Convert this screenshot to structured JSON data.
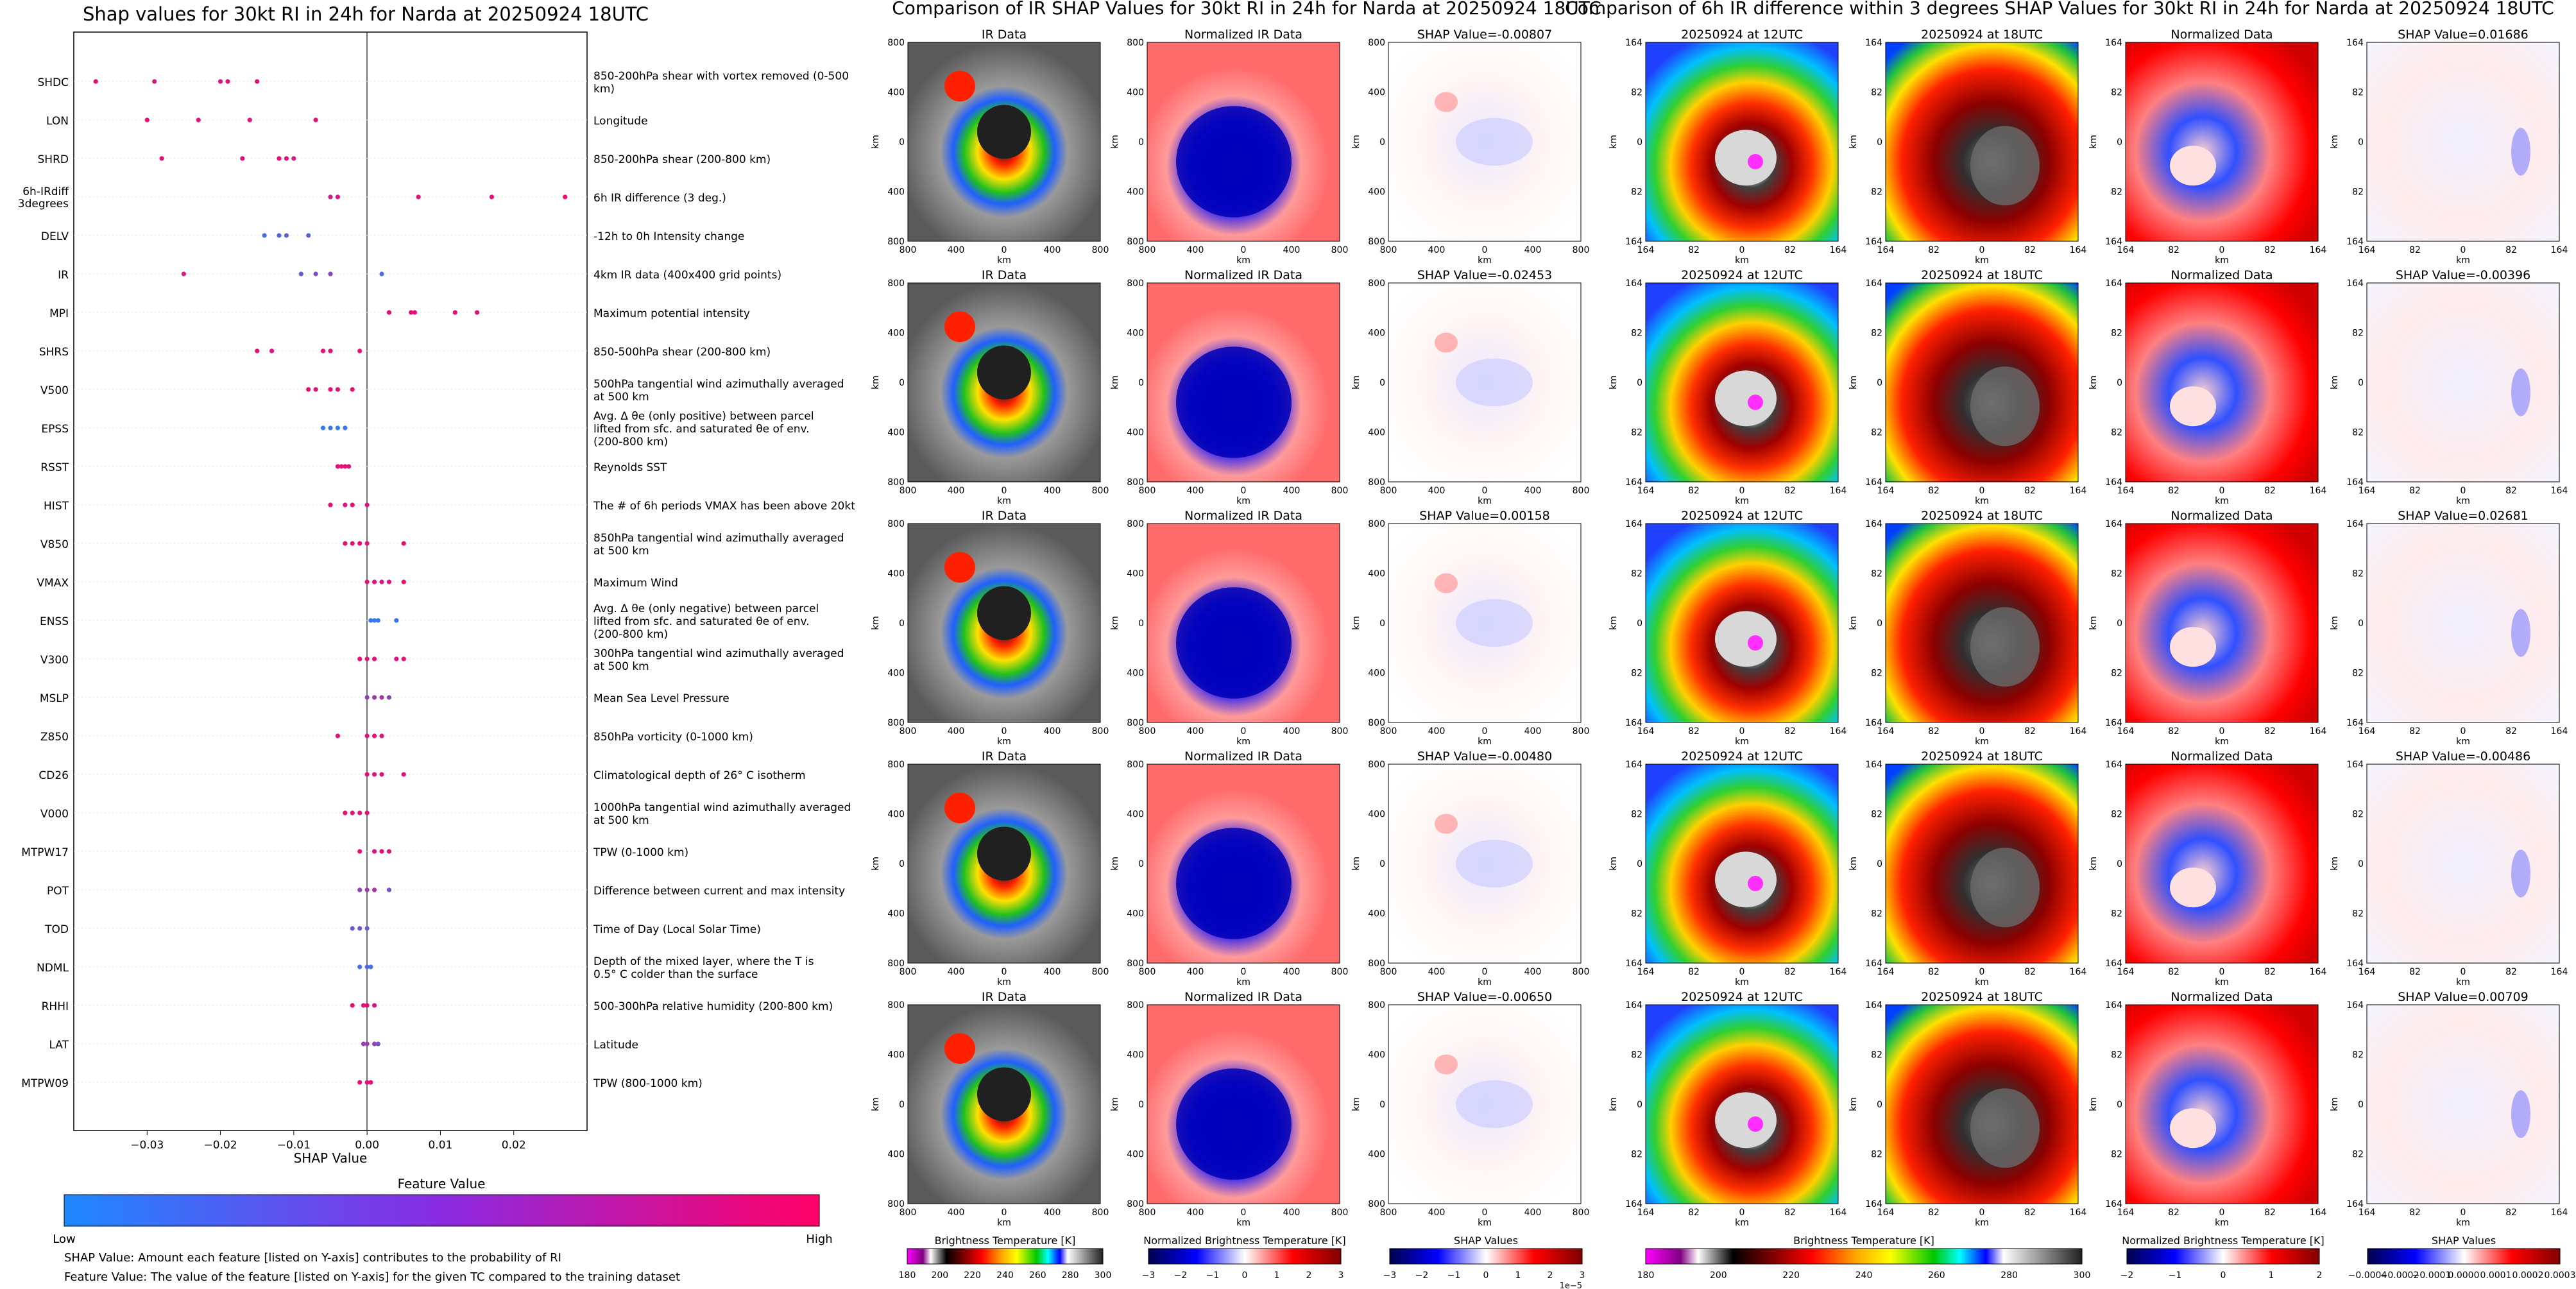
{
  "left": {
    "title": "Shap values for 30kt RI in 24h for Narda at 20250924 18UTC",
    "xlabel": "SHAP Value",
    "colorbar_title": "Feature Value",
    "colorbar_low": "Low",
    "colorbar_high": "High",
    "note1": "SHAP Value: Amount each feature [listed on Y-axis] contributes to the probability of RI",
    "note2": "Feature Value: The value of the feature [listed on Y-axis] for the given TC compared to the training dataset"
  },
  "chart_data": [
    {
      "type": "scatter",
      "title": "Shap values for 30kt RI in 24h for Narda at 20250924 18UTC",
      "xlabel": "SHAP Value",
      "xlim": [
        -0.04,
        0.03
      ],
      "xticks": [
        -0.03,
        -0.02,
        -0.01,
        0.0,
        0.01,
        0.02
      ],
      "xtick_labels": [
        "−0.03",
        "−0.02",
        "−0.01",
        "0.00",
        "0.01",
        "0.02"
      ],
      "legend": "colorbar-bottom",
      "color_low": "#1e88ff",
      "color_high": "#ff0066",
      "features": [
        {
          "name": "SHDC",
          "desc": "850-200hPa shear with vortex removed (0-500 km)",
          "points": [
            [
              -0.037,
              0.9
            ],
            [
              -0.029,
              0.8
            ],
            [
              -0.02,
              0.85
            ],
            [
              -0.019,
              0.9
            ],
            [
              -0.015,
              0.85
            ]
          ]
        },
        {
          "name": "LON",
          "desc": "Longitude",
          "points": [
            [
              -0.03,
              0.9
            ],
            [
              -0.023,
              0.85
            ],
            [
              -0.016,
              0.85
            ],
            [
              -0.007,
              0.9
            ]
          ]
        },
        {
          "name": "SHRD",
          "desc": "850-200hPa shear (200-800 km)",
          "points": [
            [
              -0.028,
              0.9
            ],
            [
              -0.017,
              0.85
            ],
            [
              -0.012,
              0.9
            ],
            [
              -0.011,
              0.85
            ],
            [
              -0.01,
              0.8
            ]
          ]
        },
        {
          "name": "6h-IRdiff 3degrees",
          "desc": "6h IR difference (3 deg.)",
          "points": [
            [
              -0.005,
              0.8
            ],
            [
              -0.004,
              0.85
            ],
            [
              0.007,
              0.9
            ],
            [
              0.017,
              0.9
            ],
            [
              0.027,
              0.95
            ]
          ]
        },
        {
          "name": "DELV",
          "desc": "-12h to 0h Intensity change",
          "points": [
            [
              -0.014,
              0.2
            ],
            [
              -0.012,
              0.25
            ],
            [
              -0.011,
              0.3
            ],
            [
              -0.008,
              0.25
            ]
          ]
        },
        {
          "name": "IR",
          "desc": "4km IR data (400x400 grid points)",
          "points": [
            [
              -0.025,
              0.8
            ],
            [
              -0.009,
              0.3
            ],
            [
              -0.007,
              0.4
            ],
            [
              -0.005,
              0.5
            ],
            [
              0.002,
              0.2
            ]
          ]
        },
        {
          "name": "MPI",
          "desc": "Maximum potential intensity",
          "points": [
            [
              0.003,
              0.9
            ],
            [
              0.006,
              0.9
            ],
            [
              0.0065,
              0.85
            ],
            [
              0.012,
              0.9
            ],
            [
              0.015,
              0.9
            ]
          ]
        },
        {
          "name": "SHRS",
          "desc": "850-500hPa shear (200-800 km)",
          "points": [
            [
              -0.015,
              0.9
            ],
            [
              -0.013,
              0.85
            ],
            [
              -0.006,
              0.9
            ],
            [
              -0.005,
              0.85
            ],
            [
              -0.001,
              0.9
            ]
          ]
        },
        {
          "name": "V500",
          "desc": "500hPa tangential wind azimuthally averaged at 500 km",
          "points": [
            [
              -0.008,
              0.9
            ],
            [
              -0.007,
              0.85
            ],
            [
              -0.005,
              0.9
            ],
            [
              -0.004,
              0.85
            ],
            [
              -0.002,
              0.9
            ]
          ]
        },
        {
          "name": "EPSS",
          "desc": "Avg. Δ θe (only positive) between parcel lifted from sfc. and saturated θe of env. (200-800 km)",
          "points": [
            [
              -0.006,
              0.1
            ],
            [
              -0.005,
              0.15
            ],
            [
              -0.004,
              0.1
            ],
            [
              -0.003,
              0.15
            ]
          ]
        },
        {
          "name": "RSST",
          "desc": "Reynolds SST",
          "points": [
            [
              -0.004,
              0.9
            ],
            [
              -0.0035,
              0.85
            ],
            [
              -0.003,
              0.9
            ],
            [
              -0.0025,
              0.85
            ]
          ]
        },
        {
          "name": "HIST",
          "desc": "The # of 6h periods VMAX has been above 20kt",
          "points": [
            [
              -0.005,
              0.9
            ],
            [
              -0.003,
              0.85
            ],
            [
              -0.002,
              0.9
            ],
            [
              0.0,
              0.85
            ]
          ]
        },
        {
          "name": "V850",
          "desc": "850hPa tangential wind azimuthally averaged at 500 km",
          "points": [
            [
              -0.003,
              0.9
            ],
            [
              -0.002,
              0.85
            ],
            [
              -0.001,
              0.9
            ],
            [
              0.0,
              0.85
            ],
            [
              0.005,
              0.9
            ]
          ]
        },
        {
          "name": "VMAX",
          "desc": "Maximum Wind",
          "points": [
            [
              0.0,
              0.9
            ],
            [
              0.001,
              0.85
            ],
            [
              0.002,
              0.85
            ],
            [
              0.003,
              0.85
            ],
            [
              0.005,
              0.9
            ]
          ]
        },
        {
          "name": "ENSS",
          "desc": "Avg. Δ θe (only negative) between parcel lifted from sfc. and saturated θe of env. (200-800 km)",
          "points": [
            [
              0.0005,
              0.1
            ],
            [
              0.001,
              0.15
            ],
            [
              0.0015,
              0.1
            ],
            [
              0.004,
              0.15
            ]
          ]
        },
        {
          "name": "V300",
          "desc": "300hPa tangential wind azimuthally averaged at 500 km",
          "points": [
            [
              -0.001,
              0.9
            ],
            [
              0.0,
              0.85
            ],
            [
              0.001,
              0.9
            ],
            [
              0.004,
              0.85
            ],
            [
              0.005,
              0.9
            ]
          ]
        },
        {
          "name": "MSLP",
          "desc": "Mean Sea Level Pressure",
          "points": [
            [
              0.0,
              0.5
            ],
            [
              0.001,
              0.55
            ],
            [
              0.002,
              0.6
            ],
            [
              0.003,
              0.5
            ]
          ]
        },
        {
          "name": "Z850",
          "desc": "850hPa vorticity (0-1000 km)",
          "points": [
            [
              -0.004,
              0.9
            ],
            [
              0.0,
              0.85
            ],
            [
              0.001,
              0.9
            ],
            [
              0.002,
              0.85
            ]
          ]
        },
        {
          "name": "CD26",
          "desc": "Climatological depth of 26° C isotherm",
          "points": [
            [
              0.0,
              0.9
            ],
            [
              0.001,
              0.85
            ],
            [
              0.002,
              0.9
            ],
            [
              0.005,
              0.85
            ]
          ]
        },
        {
          "name": "V000",
          "desc": "1000hPa tangential wind azimuthally averaged at 500 km",
          "points": [
            [
              -0.003,
              0.9
            ],
            [
              -0.002,
              0.85
            ],
            [
              -0.001,
              0.85
            ],
            [
              0.0,
              0.9
            ]
          ]
        },
        {
          "name": "MTPW17",
          "desc": "TPW (0-1000 km)",
          "points": [
            [
              -0.001,
              0.9
            ],
            [
              0.001,
              0.85
            ],
            [
              0.002,
              0.9
            ],
            [
              0.003,
              0.85
            ]
          ]
        },
        {
          "name": "POT",
          "desc": "Difference between current and max intensity",
          "points": [
            [
              -0.001,
              0.5
            ],
            [
              0.0,
              0.55
            ],
            [
              0.001,
              0.6
            ],
            [
              0.003,
              0.4
            ]
          ]
        },
        {
          "name": "TOD",
          "desc": "Time of Day (Local Solar Time)",
          "points": [
            [
              -0.002,
              0.3
            ],
            [
              -0.001,
              0.35
            ],
            [
              0.0,
              0.3
            ]
          ]
        },
        {
          "name": "NDML",
          "desc": "Depth of the mixed layer, where the T is 0.5° C colder than the surface",
          "points": [
            [
              -0.001,
              0.2
            ],
            [
              0.0,
              0.25
            ],
            [
              0.0005,
              0.2
            ]
          ]
        },
        {
          "name": "RHHI",
          "desc": "500-300hPa relative humidity (200-800 km)",
          "points": [
            [
              -0.002,
              0.9
            ],
            [
              -0.0005,
              0.85
            ],
            [
              0.0,
              0.9
            ],
            [
              0.001,
              0.85
            ]
          ]
        },
        {
          "name": "LAT",
          "desc": "Latitude",
          "points": [
            [
              -0.0005,
              0.5
            ],
            [
              0.0,
              0.55
            ],
            [
              0.001,
              0.5
            ],
            [
              0.0015,
              0.4
            ]
          ]
        },
        {
          "name": "MTPW09",
          "desc": "TPW (800-1000 km)",
          "points": [
            [
              -0.001,
              0.9
            ],
            [
              0.0,
              0.85
            ],
            [
              0.0005,
              0.9
            ]
          ]
        }
      ]
    },
    {
      "type": "heatmap",
      "title": "Comparison of IR SHAP Values for 30kt RI in 24h for Narda at 20250924 18UTC",
      "columns": [
        "IR Data",
        "Normalized IR Data",
        "SHAP Value"
      ],
      "axis_label": "km",
      "tick_labels": [
        "800",
        "400",
        "0",
        "400",
        "800"
      ],
      "shap_values": [
        "-0.00807",
        "-0.02453",
        "0.00158",
        "-0.00480",
        "-0.00650"
      ],
      "colorbars": [
        {
          "label": "Brightness Temperature [K]",
          "ticks": [
            "180",
            "200",
            "220",
            "240",
            "260",
            "280",
            "300"
          ]
        },
        {
          "label": "Normalized Brightness Temperature [K]",
          "ticks": [
            "−3",
            "−2",
            "−1",
            "0",
            "1",
            "2",
            "3"
          ]
        },
        {
          "label": "SHAP Values",
          "ticks": [
            "−3",
            "−2",
            "−1",
            "0",
            "1",
            "2",
            "3"
          ],
          "offset": "1e−5"
        }
      ]
    },
    {
      "type": "heatmap",
      "title": "Comparison of 6h IR difference within 3 degrees SHAP Values for 30kt RI in 24h for Narda at 20250924 18UTC",
      "columns": [
        "20250924 at 12UTC",
        "20250924 at 18UTC",
        "Normalized Data",
        "SHAP Value"
      ],
      "axis_label": "km",
      "tick_labels": [
        "164",
        "82",
        "0",
        "82",
        "164"
      ],
      "shap_values": [
        "0.01686",
        "-0.00396",
        "0.02681",
        "-0.00486",
        "0.00709"
      ],
      "colorbars": [
        {
          "label": "Brightness Temperature [K]",
          "ticks": [
            "180",
            "200",
            "220",
            "240",
            "260",
            "280",
            "300"
          ]
        },
        {
          "label": "Normalized Brightness Temperature [K]",
          "ticks": [
            "−2",
            "−1",
            "0",
            "1",
            "2"
          ]
        },
        {
          "label": "SHAP Values",
          "ticks": [
            "−0.0004",
            "−0.0002",
            "−0.0001",
            "0.0000",
            "0.0001",
            "0.0002",
            "0.0003"
          ]
        }
      ]
    }
  ]
}
